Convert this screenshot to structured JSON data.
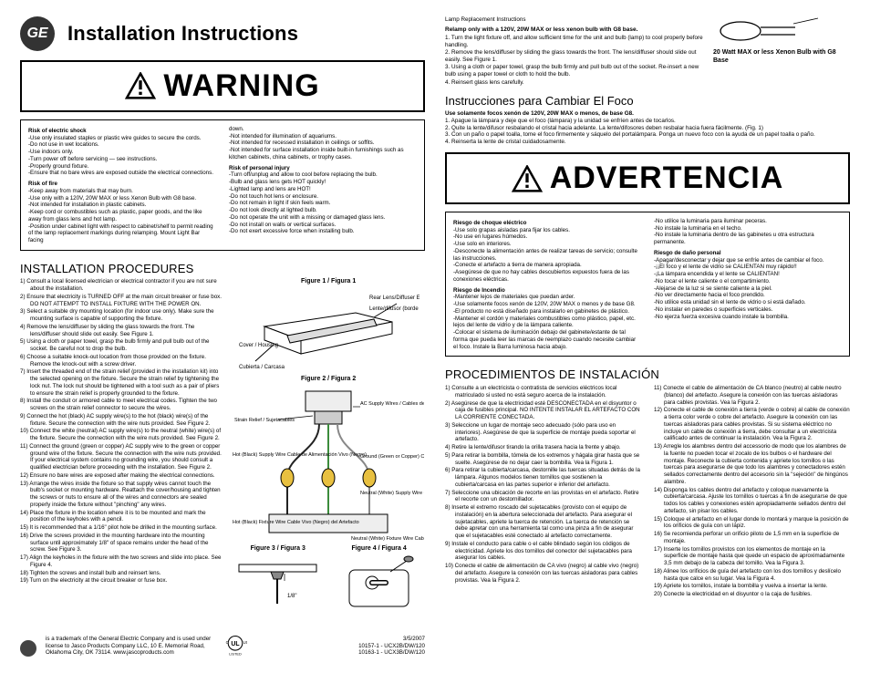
{
  "left": {
    "brand": "GE",
    "main_title": "Installation Instructions",
    "warning_label": "WARNING",
    "risk": {
      "shock_head": "Risk of electric shock",
      "shock": [
        "-Use only insulated staples or plastic wire guides to secure the cords.",
        "-Do not use in wet locations.",
        "-Use indoors only.",
        "-Turn power off before servicing — see instructions.",
        "-Properly ground fixture.",
        "-Ensure that no bare wires are exposed outside the electrical connections."
      ],
      "fire_head": "Risk of fire",
      "fire": [
        "-Keep away from materials that may burn.",
        "-Use only with a 120V, 20W MAX or less Xenon Bulb with G8 base.",
        "-Not intended for installation in plastic cabinets.",
        "-Keep cord or combustibles such as plastic, paper goods, and the like away from glass lens and hot lamp.",
        "-Position under cabinet light with respect to cabinet/shelf to permit reading of the lamp replacement markings during relamping. Mount Light Bar facing"
      ],
      "col2top": [
        "down.",
        "-Not intended for illumination of aquariums.",
        "-Not intended for recessed installation in ceilings or soffits.",
        "-Not intended for surface installation inside built-in furnishings such as kitchen cabinets, china cabinets, or trophy cases."
      ],
      "injury_head": "Risk of personal injury",
      "injury": [
        "-Turn off/unplug and allow to cool before replacing the bulb.",
        "-Bulb and glass lens gets HOT quickly!",
        "-Lighted lamp and lens are HOT!",
        "-Do not touch hot lens or enclosure.",
        "-Do not remain in light if skin feels warm.",
        "-Do not look directly at lighted bulb.",
        "-Do not operate the unit with a missing or damaged glass lens.",
        "-Do not install on walls or vertical surfaces.",
        "-Do not exert excessive force when installing bulb."
      ]
    },
    "proc_title": "INSTALLATION PROCEDURES",
    "procedures": [
      "1) Consult a local licensed electrician or electrical contractor if you are not sure about the installation.",
      "2) Ensure that electricity is TURNED OFF at the main circuit breaker or fuse box. DO NOT ATTEMPT TO INSTALL FIXTURE WITH THE POWER ON.",
      "3) Select a suitable dry mounting location (for indoor use only). Make sure the mounting surface is capable of supporting the fixture.",
      "4) Remove the lens/diffuser by sliding the glass towards the front. The lens/diffuser should slide out easily. See Figure 1.",
      "5) Using a cloth or paper towel, grasp the bulb firmly and pull bulb out of the socket. Be careful not to drop the bulb.",
      "6) Choose a suitable knock-out location from those provided on the fixture. Remove the knock-out with a screw driver.",
      "7) Insert the threaded end of the strain relief (provided in the installation kit) into the selected opening on the fixture. Secure the strain relief by tightening the lock nut. The lock nut should be tightened with a tool such as a pair of pliers to ensure the strain relief is properly grounded to the fixture.",
      "8) Install the conduit or armored cable to meet electrical codes. Tighten the two screws on the strain relief connector to secure the wires.",
      "9) Connect the hot (black) AC supply wire(s) to the hot (black) wire(s) of the fixture. Secure the connection with the wire nuts provided. See Figure 2.",
      "10) Connect the white (neutral) AC supply wire(s) to the neutral (white) wire(s) of the fixture. Secure the connection with the wire nuts provided. See Figure 2.",
      "11) Connect the ground (green or copper) AC supply wire to the green or copper ground wire of the fixture. Secure the connection with the wire nuts provided. If your electrical system contains no grounding wire, you should consult a qualified electrician before proceeding with the installation. See Figure 2.",
      "12) Ensure no bare wires are exposed after making the electrical connections.",
      "13) Arrange the wires inside the fixture so that supply wires cannot touch the bulb's socket or mounting hardware. Reattach the cover/housing and tighten the screws or nuts to ensure all of the wires and connectors are sealed properly inside the fixture without \"pinching\" any wires.",
      "14) Place the fixture in the location where it is to be mounted and mark the position of the keyholes with a pencil.",
      "15) It is recommended that a 1/16\" pilot hole be drilled in the mounting surface.",
      "16) Drive the screws provided in the mounting hardware into the mounting surface until approximately 1/8\" of space remains under the head of the screw. See Figure 3.",
      "17) Align the keyholes in the fixture with the two screws and slide into place. See Figure 4.",
      "18) Tighten the screws and install bulb and reinsert lens.",
      "19) Turn on the electricity at the circuit breaker or fuse box."
    ],
    "figs": {
      "f1": "Figure 1 / Figura 1",
      "f2": "Figure 2 / Figura 2",
      "f3": "Figure 3 / Figura 3",
      "f4": "Figure 4 / Figura 4",
      "lbl_rear": "Rear Lens/Diffuser Edge",
      "lbl_rear_es": "Lente/difusor (borde frontal)",
      "lbl_cover": "Cover / Housing",
      "lbl_cover_es": "Cubierta / Carcasa",
      "lbl_strain": "Strain Relief / Sujetacables",
      "lbl_hotsup": "Hot (Black) Supply Wire Cable de Alimentación Vivo (Negro)",
      "lbl_acsup": "AC Supply Wires / Cables de Alimentación de CA",
      "lbl_ground": "Ground (Green or Copper) Cables de Conexión a Tierra (Verde o Cobre)",
      "lbl_neutsup": "Neutral (White) Supply Wire Cable de Alimentación Neutro (Blanco)",
      "lbl_hotfix": "Hot (Black) Fixture Wire Cable Vivo (Negro) del Artefacto",
      "lbl_neutfix": "Neutral (White) Fixture Wire Cable Neutro (Blanco) del Artefacto"
    },
    "footer": {
      "trademark": "is a trademark of the General Electric Company and is used under license to Jasco Products Company LLC, 10 E. Memorial Road, Oklahoma City, OK 73114. www.jascoproducts.com",
      "ul": "LISTED",
      "date": "3/5/2007",
      "sku1": "10157-1 - UCX2B/DW/120",
      "sku2": "10163-1 - UCX3B/DW/120"
    }
  },
  "right": {
    "lamp_title": "Lamp Replacement Instructions",
    "lamp_bold": "Relamp only with a 120V, 20W MAX or less xenon bulb with G8 base.",
    "lamp_steps": [
      "1. Turn the light fixture off, and allow sufficient time for the unit and bulb (lamp) to cool properly before handling.",
      "2. Remove the lens/diffuser by sliding the glass towards the front. The lens/diffuser should slide out easily. See Figure 1.",
      "3. Using a cloth or paper towel, grasp the bulb firmly and pull bulb out of the socket. Re-insert a new bulb using a paper towel or cloth to hold the bulb.",
      "4. Reinsert glass lens carefully."
    ],
    "bulb_label": "20 Watt MAX or less Xenon Bulb with G8 Base",
    "lamp_title_es": "Instrucciones para Cambiar El Foco",
    "lamp_bold_es": "Use solamente focos xenón de 120V, 20W MAX o menos, de base G8.",
    "lamp_steps_es": [
      "1. Apague la lámpara y deje que el foco (lámpara) y la unidad se enfríen antes de tocarlos.",
      "2. Quite la lente/difusor resbalando el cristal hacia adelante. La lente/difosores deben resbalar hacia fuera fácilmente. (Fig. 1)",
      "3. Con un paño o papel toalla, tome el foco firmemente y sáquelo del portalámpara. Ponga un nuevo foco con la ayuda de un papel toalla o paño.",
      "4. Reinserta la lente de cristal cuidadosamente."
    ],
    "warning_label_es": "ADVERTENCIA",
    "risk_es": {
      "shock_head": "Riesgo de choque eléctrico",
      "shock": [
        "-Use solo grapas aisladas para fijar los cables.",
        "-No use en lugares húmedos.",
        "-Use solo en interiores.",
        "-Desconecte la alimentación antes de realizar tareas de servicio; consulte las instrucciones.",
        "-Conecte el artefacto a tierra de manera apropiada.",
        "-Asegúrese de que no hay cables descubiertos expuestos fuera de las conexiones eléctricas."
      ],
      "fire_head": "Riesgo de Incendio",
      "fire": [
        "-Mantener lejos de materiales que puedan arder.",
        "-Use solamente focos xenón de 120V, 20W MAX o menos y de base G8.",
        "-El producto no está diseñado para instalarlo en gabinetes de plástico.",
        "-Mantener el cordón y materiales combustibles como plástico, papel, etc. lejos del lente de vidrio y de la lámpara caliente.",
        "-Colocar el sistema de iluminación debajo del gabinete/estante de tal forma que pueda leer las marcas de reemplazo cuando necesite cambiar el foco. Instale la Barra luminosa hacia abajo."
      ],
      "col2top": [
        "-No utilice la luminaria para iluminar peceras.",
        "-No instale la luminaria en el techo.",
        "-No instale la luminaria dentro de las gabinetes u otra estructura permanente."
      ],
      "injury_head": "Riesgo de daño personal",
      "injury": [
        "-Apagar/desconectar y dejar que se enfríe antes de cambiar el foco.",
        "-¡¡El foco y el lente de vidrio se CALIENTAN muy rápido!!",
        "-¡La lámpara encendida y el lente se CALIENTAN!",
        "-No tocar el lente caliente o el compartimiento.",
        "-Alejarse de la luz si se siente caliente a la piel.",
        "-No ver directamente hacia el foco prendido.",
        "-No utilice esta unidad sin el lente de vidrio o si está dañado.",
        "-No instalar en paredes o superficies verticales.",
        "-No ejerza fuerza excesiva cuando instale la bombilla."
      ]
    },
    "proc_title_es": "PROCEDIMIENTOS DE INSTALACIÓN",
    "procedures_es_col1": [
      "1) Consulte a un electricista o contratista de servicios eléctricos local matriculado si usted no está seguro acerca de la instalación.",
      "2) Asegúrese de que la electricidad esté DESCONECTADA en el disyuntor o caja de fusibles principal. NO INTENTE INSTALAR EL ARTEFACTO CON LA CORRIENTE CONECTADA.",
      "3) Seleccione un lugar de montaje seco adecuado (sólo para uso en interiores). Asegúrese de que la superficie de montaje pueda soportar el artefacto.",
      "4) Retire la lente/difusor tirando la orilla trasera hacia la frente y abajo.",
      "5) Para retirar la bombilla, tómela de los extremos y hágala girar hasta que se suelte. Asegúrese de no dejar caer la bombilla. Vea la Figura 1.",
      "6) Para retirar la cubierta/carcasa, destornille las tuercas situadas detrás de la lámpara. Algunos modelos tienen tornillos que sostienen la cubierta/carcasa en las partes superior e inferior del artefacto.",
      "7) Seleccione una ubicación de recorte en las provistas en el artefacto. Retire el recorte con un destornillador.",
      "8) Inserte el extremo roscado del sujetacables (provisto con el equipo de instalación) en la abertura seleccionada del artefacto. Para asegurar el sujetacables, apriete la tuerca de retención. La tuerca de retención se debe apretar con una herramienta tal como una pinza a fin de asegurar que el sujetacables esté conectado al artefacto correctamente.",
      "9) Instale el conducto para cable o el cable blindado según los códigos de electricidad. Apriete los dos tornillos del conector del sujetacables para asegurar los cables.",
      "10) Conecte el cable de alimentación de CA vivo (negro) al cable vivo (negro) del artefacto. Asegure la conexión con las tuercas aisladoras para cables provistas. Vea la Figura 2."
    ],
    "procedures_es_col2": [
      "11) Conecte el cable de alimentación de CA blanco (neutro) al cable neutro (blanco) del artefacto. Asegure la conexión con las tuercas aisladoras para cables provistas. Vea la Figura 2.",
      "12) Conecte el cable de conexión a tierra (verde o cobre) al cable de conexión a tierra color verde o cobre del artefacto. Asegure la conexión con las tuercas aisladoras para cables provistas. Si su sistema eléctrico no incluye un cable de conexión a tierra, debe consultar a un electricista calificado antes de continuar la instalación. Vea la Figura 2.",
      "13) Arregle los alambres dentro del accessorio de modo que los alambres de la fuente no pueden tocar el zocalo de los bulbos o el hardware del montaje. Reconecte la cubierta contenida y apriete los tornillos o las tuercas para asegurarse de que todo los alambres y conectadores estén sellados correctamente dentro del accesorio sin la \"sejeción\" de hingúnos alambre.",
      "14) Disponga los cables dentro del artefacto y coloque nuevamente la cubierta/carcasa. Ajuste los tornillos o tuercas a fin de asegurarse de que todos los cables y conexiones estén apropiadamente sellados dentro del artefacto, sin pisar los cables.",
      "15) Coloque el artefacto en el lugar donde lo montará y marque la posición de los orificios de guía con un lápiz.",
      "16) Se recomienda perforar un orificio piloto de 1,5 mm en la superficie de montaje.",
      "17) Inserte los tornillos provistos con los elementos de montaje en la superficie de montaje hasta que quede un espacio de aproximadamente 3,5 mm debajo de la cabeza del tornillo. Vea la Figura 3.",
      "18) Alinee los orificios de guía del artefacto con los dos tornillos y deslícelo hasta que calce en su lugar. Vea la Figura 4.",
      "19) Apriete los tornillos, instale la bombilla y vuelva a insertar la lente.",
      "20) Conecte la electricidad en el disyuntor o la caja de fusibles."
    ]
  },
  "colors": {
    "text": "#000000",
    "border": "#000000",
    "accent": "#333333",
    "wire_black": "#222222",
    "wire_white": "#f5f5f5",
    "wire_green": "#3c8c3c",
    "nut_yellow": "#e8c040"
  }
}
